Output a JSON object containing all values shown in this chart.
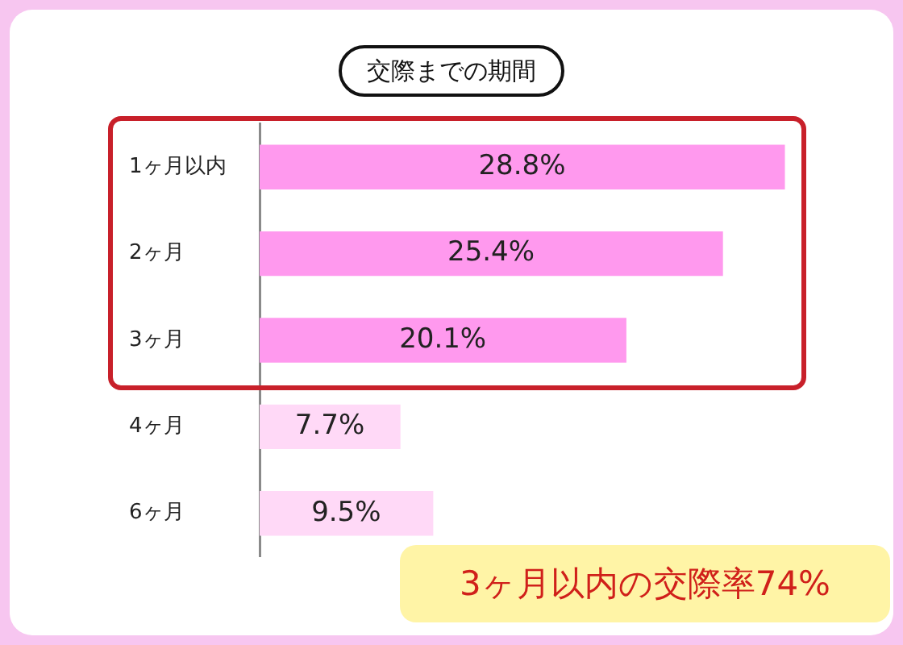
{
  "chart_data": {
    "type": "bar",
    "orientation": "horizontal",
    "title": "交際までの期間",
    "categories": [
      "1ヶ月以内",
      "2ヶ月",
      "3ヶ月",
      "4ヶ月",
      "6ヶ月"
    ],
    "values": [
      28.8,
      25.4,
      20.1,
      7.7,
      9.5
    ],
    "colors": [
      "#ff99ee",
      "#ff99ee",
      "#ff99ee",
      "#ffd9f7",
      "#ffd9f7"
    ],
    "value_labels": [
      "28.8%",
      "25.4%",
      "20.1%",
      "7.7%",
      "9.5%"
    ],
    "annotations": [
      "3ヶ月以内の交際率74%"
    ]
  }
}
